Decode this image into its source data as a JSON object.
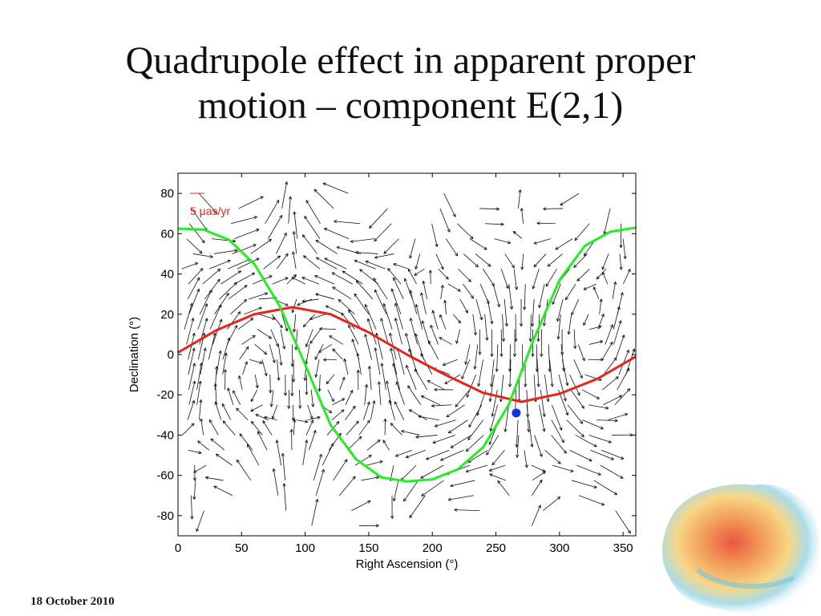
{
  "slide": {
    "title_line1": "Quadrupole effect in apparent proper",
    "title_line2": "motion – component E(2,1)",
    "footer_date": "18 October 2010"
  },
  "logo": {
    "icon": "australia-map-icon"
  },
  "chart_data": {
    "type": "line",
    "xlabel": "Right Ascension (°)",
    "ylabel": "Declination (°)",
    "xlim": [
      0,
      360
    ],
    "ylim": [
      -90,
      90
    ],
    "xticks": [
      0,
      50,
      100,
      150,
      200,
      250,
      300,
      350
    ],
    "yticks": [
      80,
      60,
      40,
      20,
      0,
      -20,
      -40,
      -60,
      -80
    ],
    "grid": false,
    "legend": {
      "label": "5 μas/yr",
      "position": "top-left",
      "color": "#e8231c"
    },
    "series": [
      {
        "color": "#e8231c",
        "x": [
          0,
          30,
          60,
          90,
          120,
          150,
          180,
          210,
          240,
          270,
          300,
          330,
          360
        ],
        "y": [
          1,
          12,
          20,
          23.5,
          20,
          11,
          0,
          -10,
          -19,
          -23.5,
          -19.5,
          -12,
          -1
        ]
      },
      {
        "color": "#22ee22",
        "x": [
          0,
          20,
          40,
          60,
          80,
          100,
          120,
          140,
          160,
          180,
          200,
          220,
          240,
          260,
          280,
          300,
          320,
          340,
          360
        ],
        "y": [
          62.5,
          62,
          57,
          45,
          24,
          -5,
          -35,
          -52,
          -61,
          -63,
          -62,
          -57,
          -46,
          -25,
          8,
          37,
          54,
          61,
          63
        ]
      }
    ],
    "marker": {
      "x": 266,
      "y": -29,
      "color": "#1133dd"
    },
    "vectors": {
      "color": "#111111",
      "description": "apparent proper motion vector field"
    }
  }
}
